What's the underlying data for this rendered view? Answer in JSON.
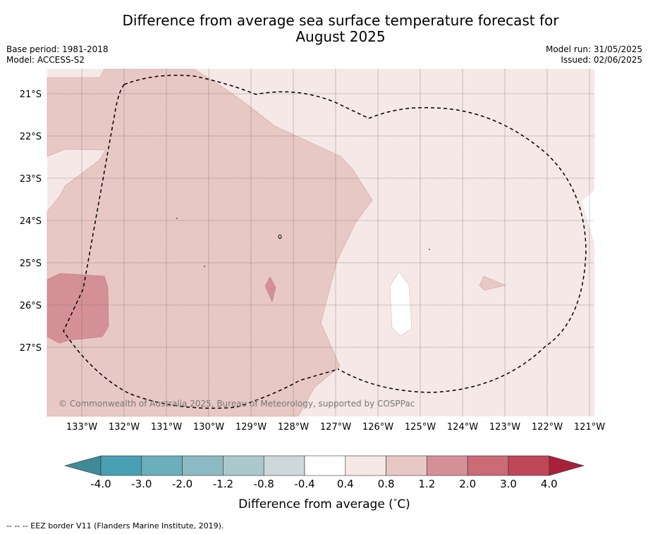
{
  "title_line1": "Difference from average sea surface temperature forecast for",
  "title_line2": "August 2025",
  "base_period": "Base period: 1981-2018",
  "model": "Model: ACCESS-S2",
  "model_run": "Model run: 31/05/2025",
  "issued": "Issued: 02/06/2025",
  "map": {
    "lat_labels": [
      "21°S",
      "22°S",
      "23°S",
      "24°S",
      "25°S",
      "26°S",
      "27°S"
    ],
    "lon_labels": [
      "133°W",
      "132°W",
      "131°W",
      "130°W",
      "129°W",
      "128°W",
      "127°W",
      "126°W",
      "125°W",
      "124°W",
      "123°W",
      "122°W",
      "121°W"
    ],
    "copyright": "© Commonwealth of Australia 2025, Bureau of Meteorology, supported by COSPPac",
    "colors": {
      "class_0_4_0_8": "#f5e8e6",
      "class_0_8_1_2": "#e8c8c4",
      "class_1_2_2_0": "#d59097",
      "class_neutral": "#ffffff",
      "eez_border": "#000000"
    }
  },
  "colorbar": {
    "ticks": [
      "-4.0",
      "-3.0",
      "-2.0",
      "-1.2",
      "-0.8",
      "-0.4",
      "0.4",
      "0.8",
      "1.2",
      "2.0",
      "3.0",
      "4.0"
    ],
    "colors": [
      "#48a0b2",
      "#6baebc",
      "#8cbac4",
      "#abc8cd",
      "#ced7d9",
      "#ffffff",
      "#f5e8e6",
      "#e8c8c4",
      "#d59097",
      "#ca6b76",
      "#bf4758"
    ],
    "under_color": "#3e8b97",
    "over_color": "#a8213b",
    "title": "Difference from average (",
    "title_unit": "C)",
    "degree_symbol": "°"
  },
  "footnote": "--  --  -- EEZ border V11 (Flanders Marine Institute, 2019)."
}
